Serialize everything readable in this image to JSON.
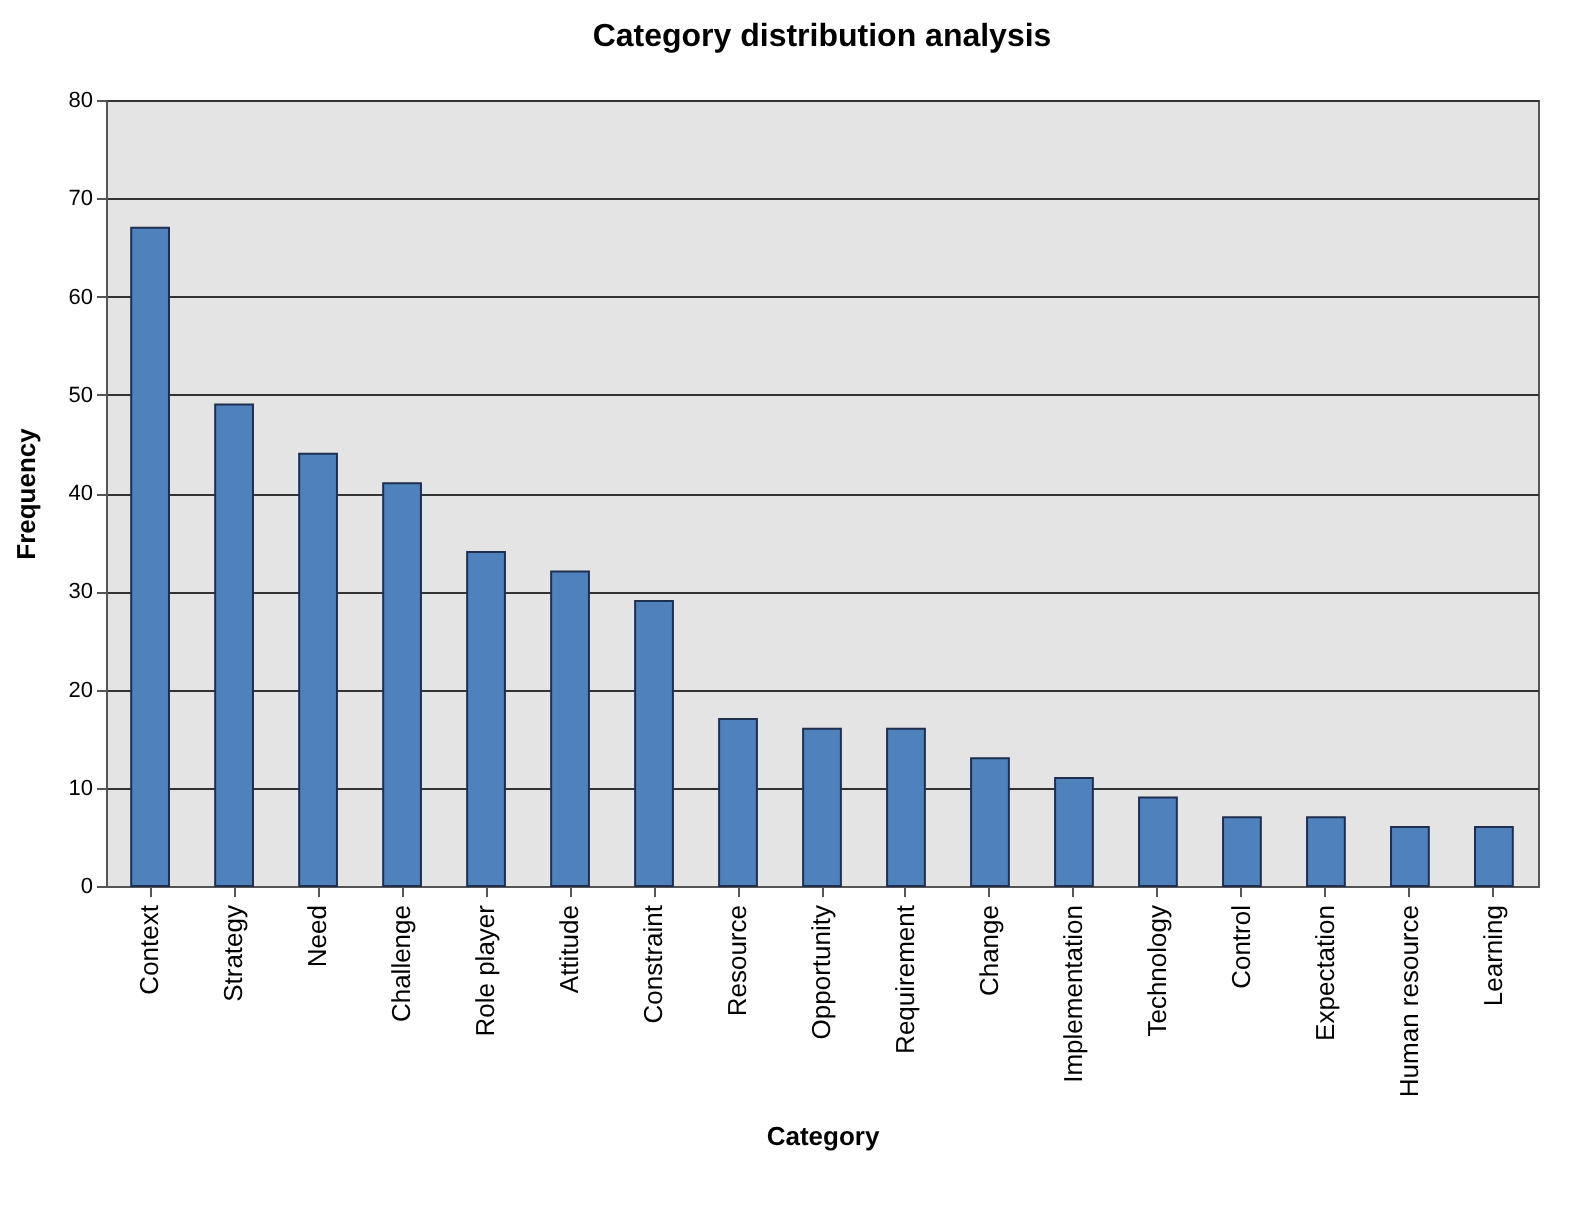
{
  "chart_data": {
    "type": "bar",
    "title": "Category distribution analysis",
    "xlabel": "Category",
    "ylabel": "Frequency",
    "categories": [
      "Context",
      "Strategy",
      "Need",
      "Challenge",
      "Role player",
      "Attitude",
      "Constraint",
      "Resource",
      "Opportunity",
      "Requirement",
      "Change",
      "Implementation",
      "Technology",
      "Control",
      "Expectation",
      "Human resource",
      "Learning"
    ],
    "values": [
      67,
      49,
      44,
      41,
      34,
      32,
      29,
      17,
      16,
      16,
      13,
      11,
      9,
      7,
      7,
      6,
      6
    ],
    "color": "#4f81bd",
    "ylim": [
      0,
      80
    ],
    "yticks": [
      0,
      10,
      20,
      30,
      40,
      50,
      60,
      70,
      80
    ],
    "grid": "y"
  }
}
